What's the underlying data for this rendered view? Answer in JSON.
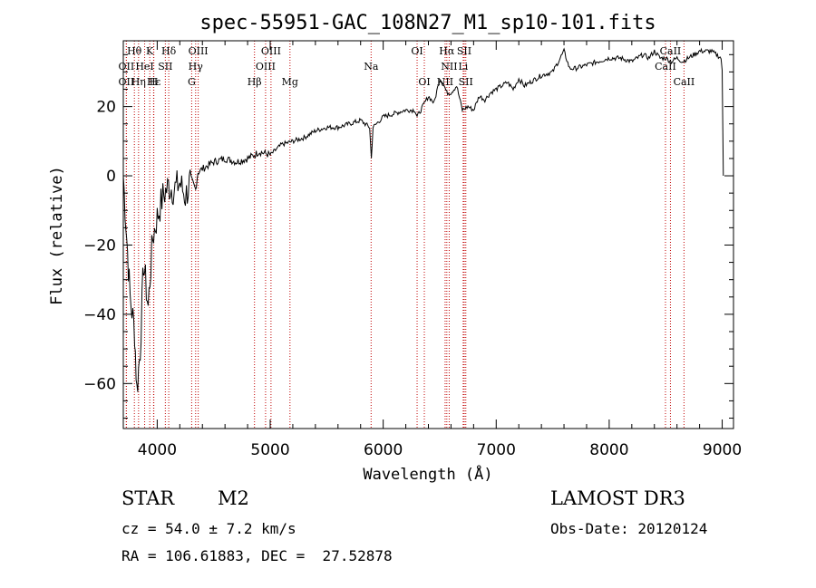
{
  "chart_data": {
    "type": "line",
    "title": "spec-55951-GAC_108N27_M1_sp10-101.fits",
    "xlabel": "Wavelength (Å)",
    "ylabel": "Flux (relative)",
    "xlim": [
      3700,
      9100
    ],
    "ylim": [
      -73,
      39
    ],
    "xticks": [
      4000,
      5000,
      6000,
      7000,
      8000,
      9000
    ],
    "yticks": [
      -60,
      -40,
      -20,
      0,
      20
    ],
    "series": [
      {
        "name": "spectrum",
        "x": [
          3700,
          3760,
          3800,
          3820,
          3850,
          3880,
          3920,
          3960,
          4000,
          4050,
          4100,
          4150,
          4200,
          4250,
          4300,
          4340,
          4360,
          4400,
          4450,
          4500,
          4600,
          4700,
          4800,
          4860,
          4900,
          5000,
          5100,
          5200,
          5300,
          5400,
          5500,
          5600,
          5700,
          5800,
          5880,
          5895,
          5910,
          6000,
          6100,
          6200,
          6280,
          6300,
          6350,
          6400,
          6450,
          6500,
          6540,
          6563,
          6600,
          6650,
          6700,
          6750,
          6800,
          6850,
          6900,
          6950,
          7000,
          7050,
          7100,
          7150,
          7200,
          7250,
          7300,
          7400,
          7500,
          7550,
          7600,
          7650,
          7700,
          7800,
          7900,
          8000,
          8100,
          8200,
          8300,
          8350,
          8400,
          8450,
          8500,
          8550,
          8600,
          8650,
          8700,
          8800,
          8900,
          8950,
          8990,
          9000,
          9010
        ],
        "y": [
          0,
          -35,
          -45,
          -62,
          -50,
          -25,
          -38,
          -18,
          -12,
          -6,
          -3,
          -4,
          -2,
          -6,
          -1,
          -4,
          1,
          2,
          3,
          4,
          5,
          4,
          5,
          6,
          7,
          6,
          9,
          10,
          11,
          13,
          14,
          14,
          15,
          16,
          14,
          5,
          14,
          17,
          18,
          19,
          19,
          17,
          20,
          23,
          21,
          28,
          26,
          24,
          24,
          26,
          19,
          20,
          19,
          23,
          22,
          24,
          25,
          26,
          27,
          25,
          28,
          26,
          27,
          29,
          30,
          33,
          36,
          31,
          31,
          32,
          33,
          34,
          34,
          33,
          35,
          34,
          36,
          34,
          34,
          33,
          34,
          33,
          34,
          36,
          36,
          35,
          34,
          30,
          0
        ],
        "color": "#000000"
      }
    ],
    "line_markers": [
      {
        "label": "Hθ",
        "w": 3798,
        "row": 0
      },
      {
        "label": "K",
        "w": 3934,
        "row": 0
      },
      {
        "label": "Hδ",
        "w": 4102,
        "row": 0
      },
      {
        "label": "OIII",
        "w": 4363,
        "row": 0
      },
      {
        "label": "OIII",
        "w": 5007,
        "row": 0
      },
      {
        "label": "OI",
        "w": 6300,
        "row": 0
      },
      {
        "label": "Hα",
        "w": 6563,
        "row": 0
      },
      {
        "label": "SII",
        "w": 6717,
        "row": 0
      },
      {
        "label": "CaII",
        "w": 8542,
        "row": 0
      },
      {
        "label": "OII",
        "w": 3727,
        "row": 1
      },
      {
        "label": "HeI",
        "w": 3889,
        "row": 1
      },
      {
        "label": "SII",
        "w": 4072,
        "row": 1
      },
      {
        "label": "Hγ",
        "w": 4340,
        "row": 1
      },
      {
        "label": "OIII",
        "w": 4959,
        "row": 1
      },
      {
        "label": "Na",
        "w": 5893,
        "row": 1
      },
      {
        "label": "NII",
        "w": 6584,
        "row": 1
      },
      {
        "label": "Li",
        "w": 6708,
        "row": 1
      },
      {
        "label": "CaII",
        "w": 8498,
        "row": 1
      },
      {
        "label": "OII",
        "w": 3727,
        "row": 2
      },
      {
        "label": "Hε",
        "w": 3970,
        "row": 2
      },
      {
        "label": "Hη",
        "w": 3835,
        "row": 2
      },
      {
        "label": "H",
        "w": 3968,
        "row": 2
      },
      {
        "label": "G",
        "w": 4305,
        "row": 2
      },
      {
        "label": "Hβ",
        "w": 4861,
        "row": 2
      },
      {
        "label": "Mg",
        "w": 5175,
        "row": 2
      },
      {
        "label": "OI",
        "w": 6364,
        "row": 2
      },
      {
        "label": "NII",
        "w": 6548,
        "row": 2
      },
      {
        "label": "SII",
        "w": 6731,
        "row": 2
      },
      {
        "label": "CaII",
        "w": 8662,
        "row": 2
      }
    ],
    "marker_color": "#c00000"
  },
  "info": {
    "object_class": "STAR",
    "subclass": "M2",
    "survey": "LAMOST DR3",
    "cz": "cz = 54.0 ± 7.2 km/s",
    "obs_date": "Obs-Date: 20120124",
    "coords": "RA = 106.61883, DEC =  27.52878"
  }
}
